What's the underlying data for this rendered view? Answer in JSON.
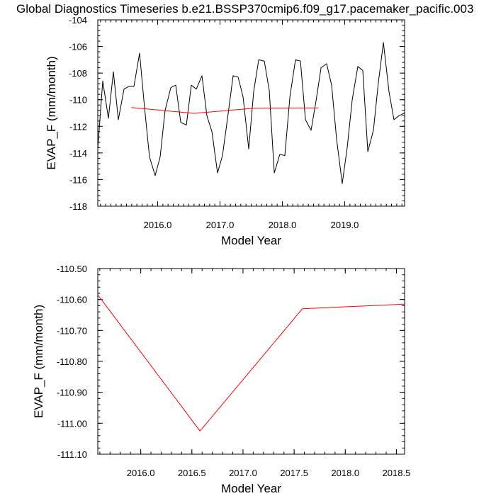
{
  "title": "Global Diagnostics Timeseries b.e21.BSSP370cmip6.f09_g17.pacemaker_pacific.003",
  "chart_data": [
    {
      "type": "line",
      "xlabel": "Model Year",
      "ylabel": "EVAP_F (mm/month)",
      "xlim": [
        2015.04,
        2019.96
      ],
      "ylim": [
        -118,
        -104
      ],
      "xticks": [
        2016.0,
        2017.0,
        2018.0,
        2019.0
      ],
      "xtick_labels": [
        "2016.0",
        "2017.0",
        "2018.0",
        "2019.0"
      ],
      "yticks": [
        -118,
        -116,
        -114,
        -112,
        -110,
        -108,
        -106,
        -104
      ],
      "ytick_labels": [
        "-118",
        "-116",
        "-114",
        "-112",
        "-110",
        "-108",
        "-106",
        "-104"
      ],
      "series": [
        {
          "color": "#000000",
          "x": [
            2015.04,
            2015.12,
            2015.21,
            2015.29,
            2015.37,
            2015.46,
            2015.54,
            2015.62,
            2015.71,
            2015.79,
            2015.87,
            2015.96,
            2016.04,
            2016.12,
            2016.21,
            2016.29,
            2016.37,
            2016.46,
            2016.54,
            2016.62,
            2016.71,
            2016.79,
            2016.87,
            2016.96,
            2017.04,
            2017.12,
            2017.21,
            2017.29,
            2017.37,
            2017.46,
            2017.54,
            2017.62,
            2017.71,
            2017.79,
            2017.87,
            2017.96,
            2018.04,
            2018.12,
            2018.21,
            2018.29,
            2018.37,
            2018.46,
            2018.54,
            2018.62,
            2018.71,
            2018.79,
            2018.87,
            2018.96,
            2019.04,
            2019.12,
            2019.21,
            2019.29,
            2019.37,
            2019.46,
            2019.54,
            2019.62,
            2019.71,
            2019.79,
            2019.87,
            2019.96
          ],
          "y": [
            -113.7,
            -108.6,
            -111.4,
            -107.9,
            -111.5,
            -109.2,
            -109.0,
            -109.0,
            -106.5,
            -110.6,
            -114.3,
            -115.7,
            -114.3,
            -110.8,
            -109.1,
            -108.9,
            -111.7,
            -111.9,
            -108.9,
            -109.2,
            -108.2,
            -111.2,
            -112.4,
            -115.5,
            -114.2,
            -111.4,
            -108.2,
            -108.3,
            -109.8,
            -113.7,
            -109.4,
            -107.0,
            -107.1,
            -109.3,
            -115.5,
            -114.1,
            -114.2,
            -109.8,
            -107.0,
            -107.1,
            -111.5,
            -112.3,
            -110.1,
            -107.6,
            -107.3,
            -108.9,
            -113.0,
            -116.3,
            -113.6,
            -110.0,
            -107.5,
            -107.8,
            -113.9,
            -112.3,
            -108.7,
            -105.7,
            -109.4,
            -111.5,
            -111.2,
            -111.0
          ]
        },
        {
          "color": "#ff0000",
          "x": [
            2015.58,
            2016.58,
            2017.58,
            2018.58
          ],
          "y": [
            -110.585,
            -111.025,
            -110.63,
            -110.615
          ]
        }
      ]
    },
    {
      "type": "line",
      "xlabel": "Model Year",
      "ylabel": "EVAP_F (mm/month)",
      "xlim": [
        2015.58,
        2018.58
      ],
      "ylim": [
        -111.1,
        -110.5
      ],
      "xticks": [
        2016.0,
        2016.5,
        2017.0,
        2017.5,
        2018.0,
        2018.5
      ],
      "xtick_labels": [
        "2016.0",
        "2016.5",
        "2017.0",
        "2017.5",
        "2018.0",
        "2018.5"
      ],
      "yticks": [
        -111.1,
        -111.0,
        -110.9,
        -110.8,
        -110.7,
        -110.6,
        -110.5
      ],
      "ytick_labels": [
        "-111.10",
        "-111.00",
        "-110.90",
        "-110.80",
        "-110.70",
        "-110.60",
        "-110.50"
      ],
      "series": [
        {
          "color": "#ff0000",
          "x": [
            2015.58,
            2016.58,
            2017.58,
            2018.58
          ],
          "y": [
            -110.585,
            -111.025,
            -110.63,
            -110.615
          ]
        }
      ]
    }
  ]
}
